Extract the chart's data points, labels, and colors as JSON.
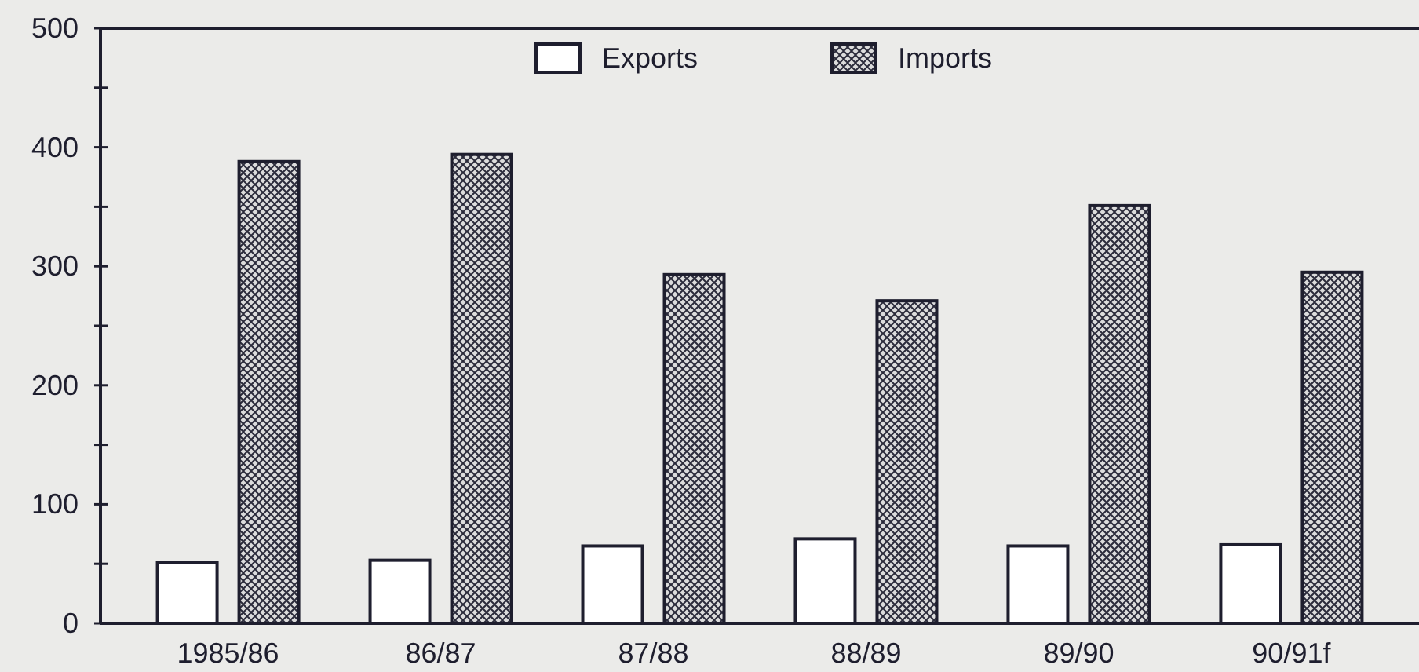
{
  "chart_data": {
    "type": "bar",
    "categories": [
      "1985/86",
      "86/87",
      "87/88",
      "88/89",
      "89/90",
      "90/91f"
    ],
    "series": [
      {
        "name": "Exports",
        "color": "#ffffff",
        "values": [
          51,
          53,
          65,
          71,
          65,
          66
        ]
      },
      {
        "name": "Imports",
        "color": "#2b2b3b",
        "values": [
          388,
          394,
          293,
          271,
          351,
          295
        ]
      }
    ],
    "ylim": [
      0,
      500
    ],
    "yticks": [
      0,
      {
        "value": 50,
        "label": null
      },
      100,
      {
        "value": 150,
        "label": null
      },
      200,
      {
        "value": 250,
        "label": null
      },
      300,
      {
        "value": 350,
        "label": null
      },
      400,
      {
        "value": 450,
        "label": null
      },
      500
    ],
    "legend": "top"
  }
}
